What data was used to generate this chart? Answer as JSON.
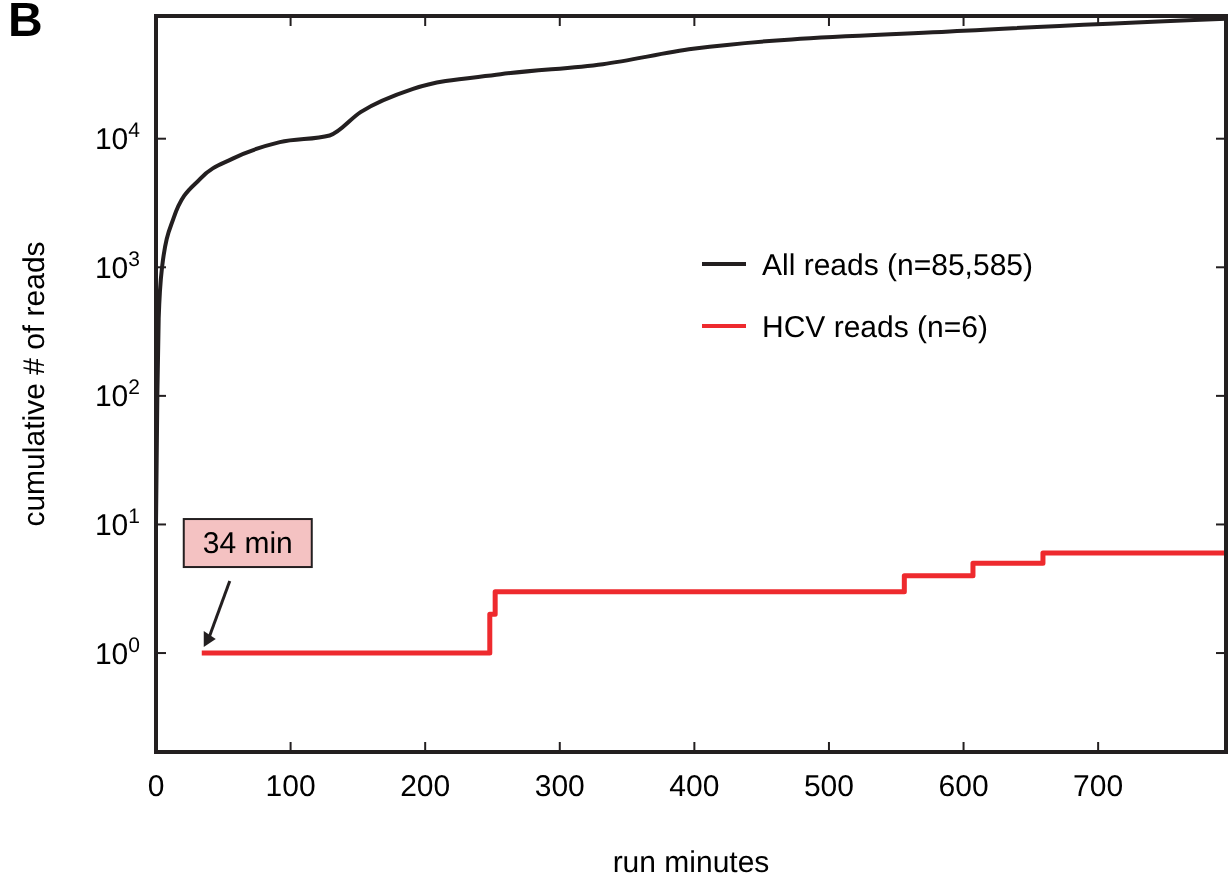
{
  "chart_data": {
    "type": "line",
    "xlabel": "run minutes",
    "ylabel": "cumulative # of reads",
    "annotations": [
      "B",
      {
        "text": "34 min",
        "x": 34,
        "y": 1
      }
    ],
    "log": "y",
    "xlim": [
      0,
      795
    ],
    "ylim": [
      0.17,
      90000
    ],
    "xticks": [
      0,
      100,
      200,
      300,
      400,
      500,
      600,
      700
    ],
    "yticks": [
      {
        "value": 1,
        "label": "10$^{0}$"
      },
      {
        "value": 10,
        "label": "10$^{1}$"
      },
      {
        "value": 100,
        "label": "10$^{2}$"
      },
      {
        "value": 1000,
        "label": "10$^{3}$"
      },
      {
        "value": 10000,
        "label": "10$^{4}$"
      }
    ],
    "grid": false,
    "legend": "right",
    "line_style": "solid",
    "marker": "none",
    "series": [
      {
        "name": "All reads (n=85,585)",
        "color": "#231f20",
        "x": [
          0,
          1,
          2,
          4.5,
          13,
          33,
          57,
          92,
          129,
          152,
          191,
          256,
          332,
          399,
          600,
          795
        ],
        "values": [
          10,
          100,
          400,
          1000,
          2400,
          4900,
          7000,
          9400,
          10600,
          16100,
          24400,
          31700,
          38000,
          50000,
          69000,
          85585
        ]
      },
      {
        "name": "HCV reads (n=6)",
        "color": "#ee2a2e",
        "type": "step",
        "x": [
          34,
          248,
          252,
          556,
          607,
          659,
          795
        ],
        "values": [
          1,
          2,
          3,
          4,
          5,
          6,
          6
        ]
      }
    ]
  }
}
